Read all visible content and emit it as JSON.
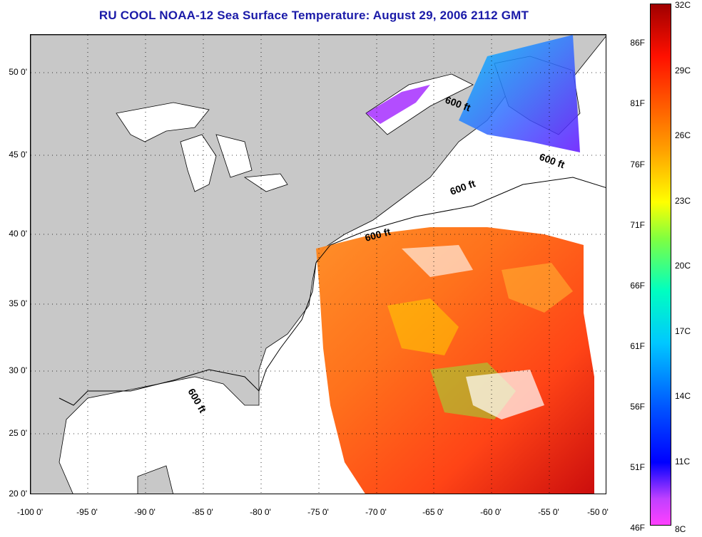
{
  "title": "RU COOL  NOAA-12  Sea Surface Temperature:  August 29, 2006 2112 GMT",
  "map": {
    "lat_labels": [
      "50 0'",
      "45 0'",
      "40 0'",
      "35 0'",
      "30 0'",
      "25 0'",
      "20 0'"
    ],
    "lon_labels": [
      "-100 0'",
      "-95 0'",
      "-90 0'",
      "-85 0'",
      "-80 0'",
      "-75 0'",
      "-70 0'",
      "-65 0'",
      "-60 0'",
      "-55 0'",
      "-50 0'"
    ],
    "lat_values": [
      50,
      45,
      40,
      35,
      30,
      25,
      20
    ],
    "lon_values": [
      -100,
      -95,
      -90,
      -85,
      -80,
      -75,
      -70,
      -65,
      -60,
      -55,
      -50
    ],
    "lat_range": [
      20,
      52.5
    ],
    "lon_range": [
      -100,
      -50
    ],
    "grid": "dotted",
    "contour_label": "600 ft",
    "colors": {
      "land": "#c8c8c8",
      "title": "#1a1aa8"
    }
  },
  "colorbar": {
    "fahrenheit_labels": [
      "86F",
      "81F",
      "76F",
      "71F",
      "66F",
      "61F",
      "56F",
      "51F",
      "46F"
    ],
    "fahrenheit_values": [
      86,
      81,
      76,
      71,
      66,
      61,
      56,
      51,
      46
    ],
    "celsius_labels": [
      "32C",
      "29C",
      "26C",
      "23C",
      "20C",
      "17C",
      "14C",
      "11C",
      "8C"
    ],
    "celsius_values": [
      32,
      29,
      26,
      23,
      20,
      17,
      14,
      11,
      8
    ],
    "range_c": [
      8,
      32
    ],
    "colormap": [
      "#ff40ff",
      "#0000ff",
      "#00c8ff",
      "#00ffc0",
      "#ffff00",
      "#ffa000",
      "#ff2000",
      "#a00000"
    ]
  }
}
